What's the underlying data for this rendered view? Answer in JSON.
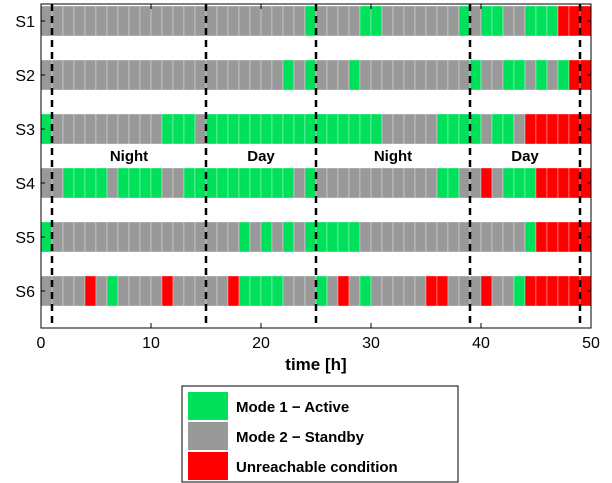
{
  "chart_data": {
    "type": "timeline",
    "xlabel": "time [h]",
    "xlim": [
      0,
      50
    ],
    "xticks": [
      0,
      10,
      20,
      30,
      40,
      50
    ],
    "ylabel": "",
    "rows": [
      "S1",
      "S2",
      "S3",
      "S4",
      "S5",
      "S6"
    ],
    "slot_hours": 1,
    "legend": [
      {
        "key": "A",
        "label": "Mode 1 − Active",
        "color": "#00e05a"
      },
      {
        "key": "S",
        "label": "Mode 2 − Standby",
        "color": "#999999"
      },
      {
        "key": "U",
        "label": "Unreachable condition",
        "color": "#ff0000"
      }
    ],
    "states": {
      "S1": "SSSSSSSSSSSSSSSSSSSSSSSSASSSSAASSSSSSSASAASSAAAUUUU",
      "S2": "SSSSSSSSSSSSSSSSSSSSSSASASSSASSSSSSSSSSASSAASASAUUUU",
      "S3": "ASSSSSSSSSSAAASAAAAAAAAAAAAAAAASSSSSAAAASAASUUUU",
      "S4": "SSAAAASAAAASSAAAAAAAAAASASSSSSSSSSSSAASSUSAAAUUUUUUU",
      "S5": "ASSSSSSSSSSSSSSSSSASASASAAAAASSSSSSSSSSSSSSSAUUUUUU",
      "S6": "SSSSUSASSSSUSSSSSUAAAASSSASUSASSSSSUUSSSUSSAUUUUUUUU"
    },
    "boundaries": [
      1,
      15,
      25,
      39,
      49
    ],
    "periods": [
      {
        "label": "Night",
        "center": 8
      },
      {
        "label": "Day",
        "center": 20
      },
      {
        "label": "Night",
        "center": 32
      },
      {
        "label": "Day",
        "center": 44
      }
    ],
    "grid": false,
    "legend_position": "bottom"
  }
}
